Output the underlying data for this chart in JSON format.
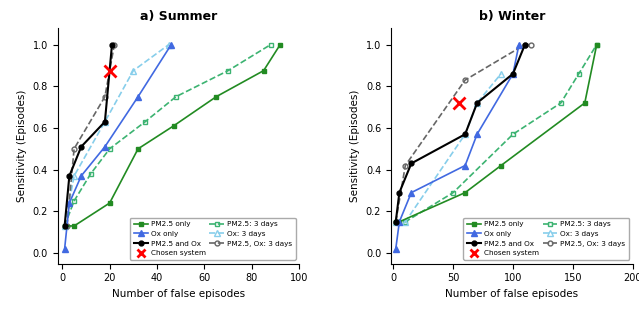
{
  "summer": {
    "pm25_only": {
      "x": [
        1,
        5,
        20,
        32,
        47,
        65,
        85,
        92
      ],
      "y": [
        0.13,
        0.13,
        0.24,
        0.5,
        0.61,
        0.75,
        0.875,
        1.0
      ]
    },
    "ox_only": {
      "x": [
        1,
        3,
        8,
        18,
        32,
        46
      ],
      "y": [
        0.02,
        0.24,
        0.37,
        0.51,
        0.75,
        1.0
      ]
    },
    "pm25_ox": {
      "x": [
        1,
        3,
        8,
        18,
        21
      ],
      "y": [
        0.13,
        0.37,
        0.51,
        0.63,
        1.0
      ]
    },
    "pm25_3days": {
      "x": [
        1,
        5,
        12,
        20,
        35,
        48,
        70,
        88
      ],
      "y": [
        0.13,
        0.25,
        0.38,
        0.5,
        0.63,
        0.75,
        0.875,
        1.0
      ]
    },
    "ox_3days": {
      "x": [
        1,
        5,
        18,
        30,
        45
      ],
      "y": [
        0.13,
        0.37,
        0.63,
        0.875,
        1.0
      ]
    },
    "pm25_ox_3days": {
      "x": [
        2,
        5,
        18,
        22
      ],
      "y": [
        0.13,
        0.5,
        0.75,
        1.0
      ]
    },
    "chosen": {
      "x": [
        20
      ],
      "y": [
        0.875
      ]
    }
  },
  "winter": {
    "pm25_only": {
      "x": [
        2,
        5,
        60,
        90,
        160,
        170
      ],
      "y": [
        0.15,
        0.15,
        0.29,
        0.42,
        0.72,
        1.0
      ]
    },
    "ox_only": {
      "x": [
        2,
        5,
        15,
        60,
        70,
        100,
        105
      ],
      "y": [
        0.02,
        0.15,
        0.29,
        0.42,
        0.57,
        0.86,
        1.0
      ]
    },
    "pm25_ox": {
      "x": [
        2,
        5,
        15,
        60,
        70,
        100,
        110
      ],
      "y": [
        0.15,
        0.29,
        0.43,
        0.57,
        0.72,
        0.86,
        1.0
      ]
    },
    "pm25_3days": {
      "x": [
        2,
        10,
        50,
        100,
        140,
        155,
        170
      ],
      "y": [
        0.15,
        0.15,
        0.29,
        0.57,
        0.72,
        0.86,
        1.0
      ]
    },
    "ox_3days": {
      "x": [
        2,
        10,
        60,
        70,
        90
      ],
      "y": [
        0.15,
        0.15,
        0.57,
        0.72,
        0.86
      ]
    },
    "pm25_ox_3days": {
      "x": [
        2,
        10,
        60,
        110,
        115
      ],
      "y": [
        0.15,
        0.42,
        0.83,
        1.0,
        1.0
      ]
    },
    "chosen": {
      "x": [
        55
      ],
      "y": [
        0.72
      ]
    }
  },
  "colors": {
    "pm25_only": "#228B22",
    "ox_only": "#4169E1",
    "pm25_ox": "#000000",
    "pm25_3days": "#3CB371",
    "ox_3days": "#87CEEB",
    "pm25_ox_3days": "#666666",
    "chosen": "#FF0000"
  },
  "summer_xlim": 100,
  "summer_xticks": [
    0,
    20,
    40,
    60,
    80,
    100
  ],
  "winter_xlim": 200,
  "winter_xticks": [
    0,
    50,
    100,
    150,
    200
  ],
  "yticks": [
    0.0,
    0.2,
    0.4,
    0.6,
    0.8,
    1.0
  ],
  "ylim": [
    -0.05,
    1.08
  ],
  "title_summer": "a) Summer",
  "title_winter": "b) Winter",
  "xlabel": "Number of false episodes",
  "ylabel": "Sensitivity (Episodes)",
  "legend_labels": {
    "pm25_only": "PM2.5 only",
    "ox_only": "Ox only",
    "pm25_ox": "PM2.5 and Ox",
    "chosen": "Chosen system",
    "pm25_3days": "PM2.5: 3 days",
    "ox_3days": "Ox: 3 days",
    "pm25_ox_3days": "PM2.5, Ox: 3 days"
  }
}
